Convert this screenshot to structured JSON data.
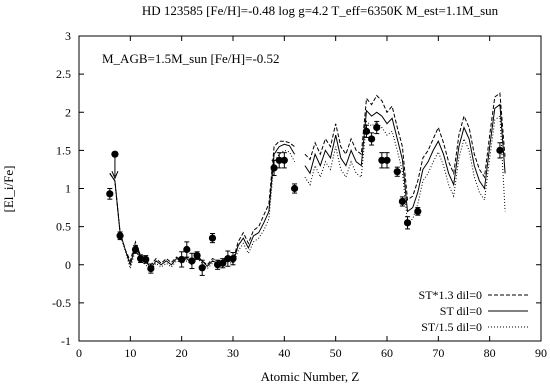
{
  "chart_data": {
    "type": "scatter",
    "title": "HD 123585   [Fe/H]=-0.48   log g=4.2   T_eff=6350K   M_est=1.1M_sun",
    "annotation": "M_AGB=1.5M_sun    [Fe/H]=-0.52",
    "xlabel": "Atomic Number, Z",
    "ylabel": "[El_i/Fe]",
    "xlim": [
      0,
      90
    ],
    "ylim": [
      -1,
      3
    ],
    "xticks": [
      0,
      10,
      20,
      30,
      40,
      50,
      60,
      70,
      80,
      90
    ],
    "yticks": [
      -1,
      -0.5,
      0,
      0.5,
      1,
      1.5,
      2,
      2.5,
      3
    ],
    "ytick_labels": [
      "-1",
      "-0.5",
      "0",
      "0.5",
      "1",
      "1.5",
      "2",
      "2.5",
      "3"
    ],
    "grid": false,
    "legend_position": "bottom-right",
    "observations": [
      {
        "z": 6,
        "y": 0.93,
        "err": 0.07
      },
      {
        "z": 7,
        "y": 1.45,
        "err": 0,
        "upper_limit": true
      },
      {
        "z": 8,
        "y": 0.38,
        "err": 0.05
      },
      {
        "z": 11,
        "y": 0.2,
        "err": 0.05
      },
      {
        "z": 12,
        "y": 0.08,
        "err": 0.05
      },
      {
        "z": 13,
        "y": 0.07,
        "err": 0.05
      },
      {
        "z": 14,
        "y": -0.05,
        "err": 0.06
      },
      {
        "z": 20,
        "y": 0.07,
        "err": 0.1
      },
      {
        "z": 21,
        "y": 0.2,
        "err": 0.1
      },
      {
        "z": 22,
        "y": 0.05,
        "err": 0.1
      },
      {
        "z": 23,
        "y": 0.12,
        "err": 0.05
      },
      {
        "z": 24,
        "y": -0.04,
        "err": 0.1
      },
      {
        "z": 26,
        "y": 0.35,
        "err": 0.06
      },
      {
        "z": 27,
        "y": 0.0,
        "err": 0.06
      },
      {
        "z": 28,
        "y": 0.02,
        "err": 0.06
      },
      {
        "z": 29,
        "y": 0.08,
        "err": 0.1
      },
      {
        "z": 30,
        "y": 0.08,
        "err": 0.08
      },
      {
        "z": 38,
        "y": 1.27,
        "err": 0.1
      },
      {
        "z": 39,
        "y": 1.37,
        "err": 0.1
      },
      {
        "z": 40,
        "y": 1.37,
        "err": 0.1
      },
      {
        "z": 42,
        "y": 1.0,
        "err": 0.06
      },
      {
        "z": 56,
        "y": 1.75,
        "err": 0.08
      },
      {
        "z": 57,
        "y": 1.65,
        "err": 0.08
      },
      {
        "z": 58,
        "y": 1.8,
        "err": 0.08
      },
      {
        "z": 59,
        "y": 1.37,
        "err": 0.1
      },
      {
        "z": 60,
        "y": 1.37,
        "err": 0.1
      },
      {
        "z": 62,
        "y": 1.22,
        "err": 0.06
      },
      {
        "z": 63,
        "y": 0.83,
        "err": 0.06
      },
      {
        "z": 64,
        "y": 0.55,
        "err": 0.08
      },
      {
        "z": 66,
        "y": 0.7,
        "err": 0.05
      },
      {
        "z": 82,
        "y": 1.5,
        "err": 0.1
      }
    ],
    "series": [
      {
        "name": "ST*1.3  dil=0",
        "dash": "4,2",
        "x": [
          6,
          7,
          8,
          9,
          10,
          11,
          12,
          13,
          14,
          15,
          16,
          17,
          18,
          19,
          20,
          21,
          22,
          23,
          24,
          25,
          26,
          27,
          28,
          29,
          30,
          31,
          32,
          33,
          34,
          35,
          36,
          37,
          38,
          39,
          40,
          41,
          42,
          null,
          44,
          45,
          46,
          47,
          48,
          49,
          50,
          51,
          52,
          53,
          54,
          55,
          56,
          57,
          58,
          59,
          60,
          61,
          62,
          63,
          64,
          65,
          66,
          67,
          68,
          69,
          70,
          71,
          72,
          73,
          74,
          75,
          76,
          77,
          78,
          79,
          80,
          81,
          82,
          83
        ],
        "y": [
          1.2,
          1.1,
          0.42,
          0.2,
          0.05,
          0.3,
          0.12,
          0.05,
          0.0,
          0.08,
          0.02,
          0.08,
          0.03,
          0.1,
          0.05,
          0.1,
          0.05,
          0.12,
          0.05,
          0.0,
          0.08,
          0.05,
          0.05,
          0.12,
          0.05,
          0.3,
          0.42,
          0.28,
          0.45,
          0.5,
          0.65,
          0.8,
          1.55,
          1.62,
          1.62,
          1.6,
          1.55,
          null,
          1.45,
          1.38,
          1.6,
          1.45,
          1.65,
          1.55,
          1.85,
          1.55,
          1.45,
          1.65,
          1.5,
          1.45,
          2.18,
          2.1,
          2.22,
          2.15,
          2.0,
          2.08,
          1.8,
          1.55,
          0.85,
          0.9,
          1.1,
          1.4,
          1.5,
          1.65,
          1.8,
          1.6,
          1.35,
          1.2,
          1.7,
          1.95,
          1.8,
          1.45,
          1.25,
          1.15,
          1.7,
          2.2,
          2.25,
          1.4
        ]
      },
      {
        "name": "ST  dil=0",
        "dash": "",
        "x": [
          6,
          7,
          8,
          9,
          10,
          11,
          12,
          13,
          14,
          15,
          16,
          17,
          18,
          19,
          20,
          21,
          22,
          23,
          24,
          25,
          26,
          27,
          28,
          29,
          30,
          31,
          32,
          33,
          34,
          35,
          36,
          37,
          38,
          39,
          40,
          41,
          42,
          null,
          44,
          45,
          46,
          47,
          48,
          49,
          50,
          51,
          52,
          53,
          54,
          55,
          56,
          57,
          58,
          59,
          60,
          61,
          62,
          63,
          64,
          65,
          66,
          67,
          68,
          69,
          70,
          71,
          72,
          73,
          74,
          75,
          76,
          77,
          78,
          79,
          80,
          81,
          82,
          83
        ],
        "y": [
          1.2,
          1.1,
          0.42,
          0.2,
          0.0,
          0.25,
          0.1,
          0.05,
          -0.05,
          0.05,
          0.0,
          0.05,
          0.0,
          0.08,
          0.05,
          0.08,
          0.02,
          0.1,
          0.05,
          -0.02,
          0.05,
          0.02,
          0.02,
          0.1,
          0.02,
          0.25,
          0.35,
          0.22,
          0.38,
          0.42,
          0.55,
          0.7,
          1.45,
          1.55,
          1.58,
          1.56,
          1.45,
          null,
          1.3,
          1.2,
          1.45,
          1.3,
          1.5,
          1.4,
          1.7,
          1.4,
          1.3,
          1.5,
          1.35,
          1.3,
          2.02,
          1.95,
          2.0,
          1.95,
          1.85,
          1.92,
          1.65,
          1.38,
          0.7,
          0.75,
          0.95,
          1.25,
          1.35,
          1.5,
          1.62,
          1.45,
          1.2,
          1.05,
          1.55,
          1.8,
          1.65,
          1.3,
          1.1,
          1.0,
          1.55,
          2.05,
          2.1,
          1.2
        ]
      },
      {
        "name": "ST/1.5  dil=0",
        "dash": "1,2",
        "x": [
          6,
          7,
          8,
          9,
          10,
          11,
          12,
          13,
          14,
          15,
          16,
          17,
          18,
          19,
          20,
          21,
          22,
          23,
          24,
          25,
          26,
          27,
          28,
          29,
          30,
          31,
          32,
          33,
          34,
          35,
          36,
          37,
          38,
          39,
          40,
          41,
          42,
          null,
          44,
          45,
          46,
          47,
          48,
          49,
          50,
          51,
          52,
          53,
          54,
          55,
          56,
          57,
          58,
          59,
          60,
          61,
          62,
          63,
          64,
          65,
          66,
          67,
          68,
          69,
          70,
          71,
          72,
          73,
          74,
          75,
          76,
          77,
          78,
          79,
          80,
          81,
          82,
          83
        ],
        "y": [
          1.2,
          1.1,
          0.4,
          0.18,
          -0.05,
          0.2,
          0.05,
          0.0,
          -0.08,
          0.02,
          -0.03,
          0.02,
          -0.03,
          0.05,
          0.02,
          0.05,
          0.0,
          0.08,
          0.02,
          -0.05,
          0.02,
          0.0,
          0.0,
          0.05,
          0.0,
          0.18,
          0.28,
          0.15,
          0.3,
          0.35,
          0.45,
          0.6,
          1.35,
          1.45,
          1.5,
          1.48,
          1.35,
          null,
          1.15,
          1.05,
          1.3,
          1.15,
          1.35,
          1.25,
          1.55,
          1.25,
          1.15,
          1.35,
          1.2,
          1.15,
          1.88,
          1.82,
          1.87,
          1.8,
          1.7,
          1.75,
          1.5,
          1.22,
          0.55,
          0.6,
          0.8,
          1.1,
          1.2,
          1.35,
          1.48,
          1.3,
          1.05,
          0.9,
          1.4,
          1.65,
          1.5,
          1.15,
          0.95,
          0.85,
          1.4,
          1.9,
          1.95,
          0.7
        ]
      }
    ]
  }
}
